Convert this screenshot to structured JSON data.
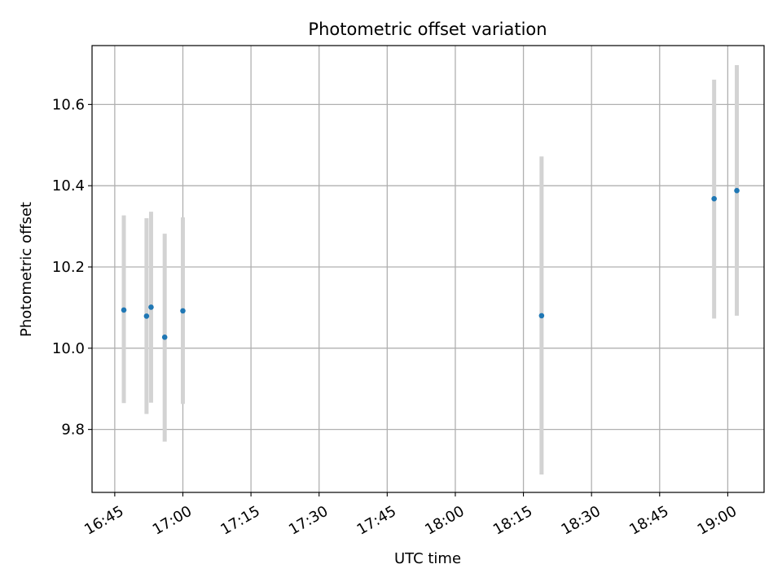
{
  "chart_data": {
    "type": "scatter",
    "title": "Photometric offset variation",
    "xlabel": "UTC time",
    "ylabel": "Photometric offset",
    "x_ticks": [
      "16:45",
      "17:00",
      "17:15",
      "17:30",
      "17:45",
      "18:00",
      "18:15",
      "18:30",
      "18:45",
      "19:00"
    ],
    "x_tick_minutes": [
      1005,
      1020,
      1035,
      1050,
      1065,
      1080,
      1095,
      1110,
      1125,
      1140
    ],
    "y_ticks": [
      "9.8",
      "10.0",
      "10.2",
      "10.4",
      "10.6"
    ],
    "y_tick_values": [
      9.8,
      10.0,
      10.2,
      10.4,
      10.6
    ],
    "xlim": [
      "16:40",
      "19:08"
    ],
    "ylim": [
      9.645,
      10.745
    ],
    "grid": true,
    "series": [
      {
        "points": [
          {
            "time": "16:47",
            "y": 10.094,
            "err_low": 9.865,
            "err_high": 10.327
          },
          {
            "time": "16:52",
            "y": 10.079,
            "err_low": 9.838,
            "err_high": 10.32
          },
          {
            "time": "16:53",
            "y": 10.101,
            "err_low": 9.866,
            "err_high": 10.336
          },
          {
            "time": "16:56",
            "y": 10.027,
            "err_low": 9.77,
            "err_high": 10.282
          },
          {
            "time": "17:00",
            "y": 10.092,
            "err_low": 9.863,
            "err_high": 10.322
          },
          {
            "time": "18:19",
            "y": 10.08,
            "err_low": 9.689,
            "err_high": 10.472
          },
          {
            "time": "18:57",
            "y": 10.368,
            "err_low": 10.073,
            "err_high": 10.661
          },
          {
            "time": "19:02",
            "y": 10.388,
            "err_low": 10.08,
            "err_high": 10.697
          }
        ]
      }
    ]
  },
  "colors": {
    "point": "#1f77b4",
    "errorbar": "#d3d3d3",
    "grid": "#b0b0b0",
    "axes": "#000000"
  }
}
